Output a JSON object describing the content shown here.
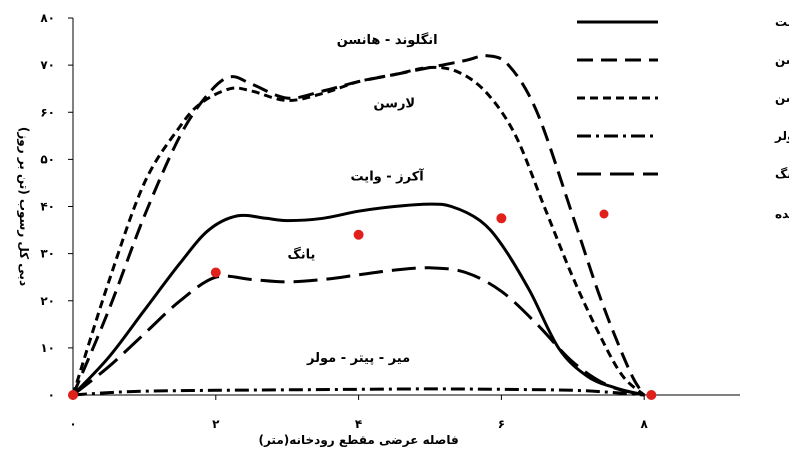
{
  "chart_data": {
    "type": "line",
    "title": "",
    "xlabel": "فاصله عرضی مقطع رودخانه(متر)",
    "ylabel": "دبی کل رسوب (تن بر روز)",
    "xlim": [
      0,
      10
    ],
    "ylim": [
      0,
      80
    ],
    "x_ticks": [
      0,
      2,
      4,
      6,
      8
    ],
    "x_tick_labels": [
      "۰",
      "۲",
      "۴",
      "۶",
      "۸"
    ],
    "y_ticks": [
      0,
      10,
      20,
      30,
      40,
      50,
      60,
      70,
      80
    ],
    "y_tick_labels": [
      "۰",
      "۱۰",
      "۲۰",
      "۳۰",
      "۴۰",
      "۵۰",
      "۶۰",
      "۷۰",
      "۸۰"
    ],
    "grid": false,
    "legend_position": "top-right",
    "series": [
      {
        "name": "آکرز - وایت",
        "style": "solid",
        "x": [
          0,
          0.5,
          1,
          1.5,
          1.9,
          2.3,
          2.7,
          3,
          3.5,
          4,
          4.5,
          5,
          5.3,
          5.7,
          6,
          6.4,
          6.8,
          7.2,
          7.6,
          8
        ],
        "y": [
          0,
          8,
          18,
          28,
          35,
          38,
          37.5,
          37,
          37.5,
          39,
          40,
          40.5,
          40,
          37,
          32,
          22,
          10,
          4,
          1.5,
          0
        ]
      },
      {
        "name": "انگلوند - هانسن",
        "style": "long-dash",
        "x": [
          0,
          0.5,
          1,
          1.5,
          1.9,
          2.2,
          2.5,
          3,
          3.5,
          4,
          4.5,
          5,
          5.5,
          5.8,
          6.1,
          6.5,
          7,
          7.4,
          7.8,
          8
        ],
        "y": [
          0,
          18,
          38,
          55,
          64,
          67.5,
          66,
          63,
          64.5,
          66.5,
          68,
          69.5,
          71,
          72,
          70,
          60,
          38,
          20,
          5,
          0
        ]
      },
      {
        "name": "لارسن",
        "style": "short-dash",
        "x": [
          0,
          0.5,
          1,
          1.5,
          1.8,
          2.2,
          2.5,
          3,
          3.5,
          4,
          4.5,
          5,
          5.4,
          5.8,
          6.2,
          6.6,
          7,
          7.4,
          7.7,
          8
        ],
        "y": [
          0,
          24,
          45,
          57,
          62,
          65,
          64.5,
          62.5,
          64,
          66.5,
          68,
          69.5,
          68.5,
          64,
          55,
          40,
          25,
          12,
          4,
          0
        ]
      },
      {
        "name": "میر - پیتر - مولر",
        "style": "dash-dot",
        "x": [
          0,
          0.5,
          1,
          2,
          3,
          4,
          5,
          6,
          7,
          7.5,
          8
        ],
        "y": [
          0,
          0.5,
          0.8,
          1,
          1.1,
          1.2,
          1.3,
          1.2,
          1.0,
          0.6,
          0
        ]
      },
      {
        "name": "یانگ",
        "style": "extra-long-dash",
        "x": [
          0,
          0.5,
          1,
          1.5,
          2,
          2.5,
          3,
          3.5,
          4,
          4.5,
          5,
          5.5,
          6,
          6.5,
          7,
          7.5,
          8
        ],
        "y": [
          0,
          6,
          13,
          20,
          25,
          24.5,
          24,
          24.5,
          25.5,
          26.5,
          27,
          26,
          22,
          15,
          7,
          2,
          0
        ]
      }
    ],
    "measured": {
      "name": "داده های اندازه گیری شده",
      "x": [
        0,
        2,
        4,
        6,
        8.1
      ],
      "y": [
        0,
        26,
        34,
        37.5,
        0
      ]
    },
    "annotations": [
      {
        "text": "انگلوند - هانسن",
        "x": 4.4,
        "y": 74.5
      },
      {
        "text": "لارسن",
        "x": 4.5,
        "y": 61
      },
      {
        "text": "آکرز - وایت",
        "x": 4.4,
        "y": 45.5
      },
      {
        "text": "یانگ",
        "x": 3.2,
        "y": 29
      },
      {
        "text": "میر - پیتر - مولر",
        "x": 4.0,
        "y": 7
      }
    ]
  }
}
